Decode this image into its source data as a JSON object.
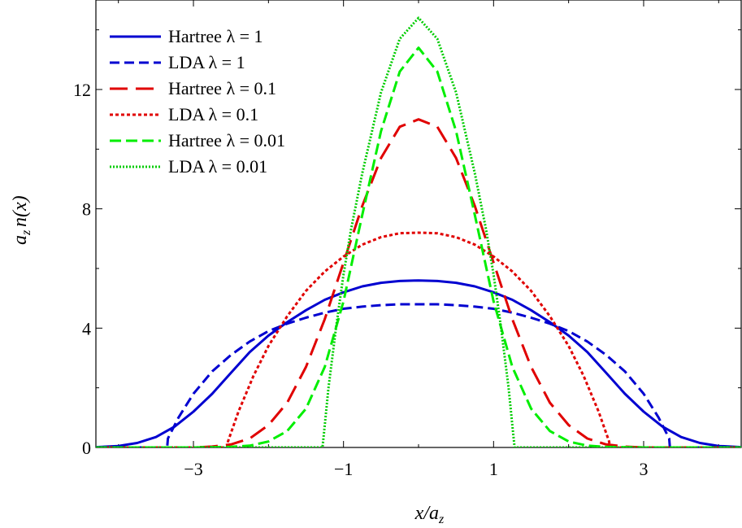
{
  "chart_data": {
    "type": "line",
    "title": "",
    "xlabel": "x/a_z",
    "ylabel": "a_z n(x)",
    "xlim": [
      -4.3,
      4.3
    ],
    "ylim": [
      0,
      15
    ],
    "x_ticks": [
      -3,
      -1,
      1,
      3
    ],
    "x_tick_labels": [
      "−3",
      "−1",
      "1",
      "3"
    ],
    "y_ticks": [
      0,
      4,
      8,
      12
    ],
    "y_tick_labels": [
      "0",
      "4",
      "8",
      "12"
    ],
    "grid": false,
    "legend_position": "top-left",
    "series": [
      {
        "name": "Hartree λ = 1",
        "color": "#0000d0",
        "dash": "solid",
        "x": [
          -4.3,
          -4.0,
          -3.75,
          -3.5,
          -3.25,
          -3.0,
          -2.75,
          -2.5,
          -2.25,
          -2.0,
          -1.75,
          -1.5,
          -1.25,
          -1.0,
          -0.75,
          -0.5,
          -0.25,
          0.0,
          0.25,
          0.5,
          0.75,
          1.0,
          1.25,
          1.5,
          1.75,
          2.0,
          2.25,
          2.5,
          2.75,
          3.0,
          3.25,
          3.5,
          3.75,
          4.0,
          4.3
        ],
        "y": [
          0.01,
          0.05,
          0.15,
          0.35,
          0.7,
          1.2,
          1.8,
          2.5,
          3.2,
          3.75,
          4.2,
          4.6,
          4.95,
          5.2,
          5.4,
          5.52,
          5.58,
          5.6,
          5.58,
          5.52,
          5.4,
          5.2,
          4.95,
          4.6,
          4.2,
          3.75,
          3.2,
          2.5,
          1.8,
          1.2,
          0.7,
          0.35,
          0.15,
          0.05,
          0.01
        ]
      },
      {
        "name": "LDA λ = 1",
        "color": "#0000d0",
        "dash": "12,6",
        "x": [
          -4.3,
          -3.35,
          -3.34,
          -3.2,
          -3.0,
          -2.75,
          -2.5,
          -2.25,
          -2.0,
          -1.75,
          -1.5,
          -1.25,
          -1.0,
          -0.75,
          -0.5,
          -0.25,
          0.0,
          0.25,
          0.5,
          0.75,
          1.0,
          1.25,
          1.5,
          1.75,
          2.0,
          2.25,
          2.5,
          2.75,
          3.0,
          3.2,
          3.34,
          3.35,
          4.3
        ],
        "y": [
          0.0,
          0.0,
          0.3,
          1.0,
          1.8,
          2.55,
          3.1,
          3.55,
          3.9,
          4.15,
          4.35,
          4.52,
          4.65,
          4.72,
          4.77,
          4.8,
          4.8,
          4.8,
          4.77,
          4.72,
          4.65,
          4.52,
          4.35,
          4.15,
          3.9,
          3.55,
          3.1,
          2.55,
          1.8,
          1.0,
          0.3,
          0.0,
          0.0
        ]
      },
      {
        "name": "Hartree λ = 0.1",
        "color": "#e00000",
        "dash": "22,10",
        "x": [
          -4.3,
          -3.0,
          -2.75,
          -2.5,
          -2.25,
          -2.0,
          -1.75,
          -1.5,
          -1.25,
          -1.0,
          -0.75,
          -0.5,
          -0.25,
          0.0,
          0.25,
          0.5,
          0.75,
          1.0,
          1.25,
          1.5,
          1.75,
          2.0,
          2.25,
          2.5,
          2.75,
          3.0,
          4.3
        ],
        "y": [
          0.0,
          0.0,
          0.03,
          0.1,
          0.3,
          0.75,
          1.5,
          2.7,
          4.3,
          6.2,
          8.1,
          9.7,
          10.75,
          11.0,
          10.75,
          9.7,
          8.1,
          6.2,
          4.3,
          2.7,
          1.5,
          0.75,
          0.3,
          0.1,
          0.03,
          0.0,
          0.0
        ]
      },
      {
        "name": "LDA λ = 0.1",
        "color": "#e00000",
        "dash": "4,3",
        "x": [
          -4.3,
          -2.55,
          -2.54,
          -2.4,
          -2.2,
          -2.0,
          -1.75,
          -1.5,
          -1.25,
          -1.0,
          -0.75,
          -0.5,
          -0.25,
          0.0,
          0.25,
          0.5,
          0.75,
          1.0,
          1.25,
          1.5,
          1.75,
          2.0,
          2.2,
          2.4,
          2.54,
          2.55,
          4.3
        ],
        "y": [
          0.0,
          0.0,
          0.2,
          1.2,
          2.4,
          3.4,
          4.4,
          5.25,
          5.9,
          6.4,
          6.8,
          7.05,
          7.18,
          7.2,
          7.18,
          7.05,
          6.8,
          6.4,
          5.9,
          5.25,
          4.4,
          3.4,
          2.4,
          1.2,
          0.2,
          0.0,
          0.0
        ]
      },
      {
        "name": "Hartree λ = 0.01",
        "color": "#00ee00",
        "dash": "14,6",
        "x": [
          -4.3,
          -3.0,
          -2.5,
          -2.25,
          -2.0,
          -1.75,
          -1.5,
          -1.25,
          -1.0,
          -0.75,
          -0.5,
          -0.25,
          0.0,
          0.25,
          0.5,
          0.75,
          1.0,
          1.25,
          1.5,
          1.75,
          2.0,
          2.25,
          2.5,
          3.0,
          4.3
        ],
        "y": [
          0.0,
          0.0,
          0.02,
          0.06,
          0.2,
          0.55,
          1.3,
          2.7,
          4.9,
          7.8,
          10.6,
          12.6,
          13.4,
          12.6,
          10.6,
          7.8,
          4.9,
          2.7,
          1.3,
          0.55,
          0.2,
          0.06,
          0.02,
          0.0,
          0.0
        ]
      },
      {
        "name": "LDA λ = 0.01",
        "color": "#00cc00",
        "dash": "2,2",
        "x": [
          -4.3,
          -1.28,
          -1.26,
          -1.2,
          -1.1,
          -1.0,
          -0.9,
          -0.75,
          -0.5,
          -0.25,
          0.0,
          0.25,
          0.5,
          0.75,
          0.9,
          1.0,
          1.1,
          1.2,
          1.26,
          1.28,
          4.3
        ],
        "y": [
          0.0,
          0.0,
          0.5,
          2.0,
          4.0,
          5.8,
          7.3,
          9.2,
          11.9,
          13.7,
          14.4,
          13.7,
          11.9,
          9.2,
          7.3,
          5.8,
          4.0,
          2.0,
          0.5,
          0.0,
          0.0
        ]
      }
    ]
  }
}
